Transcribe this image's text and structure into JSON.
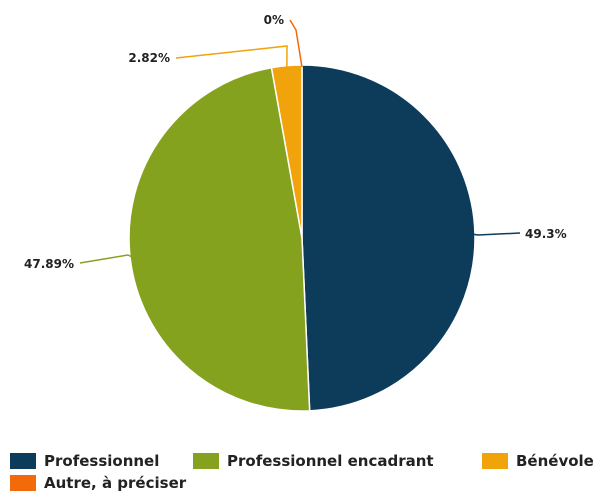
{
  "chart_data": {
    "type": "pie",
    "categories": [
      "Professionnel",
      "Professionnel encadrant",
      "Bénévole",
      "Autre, à préciser"
    ],
    "values": [
      49.3,
      47.89,
      2.82,
      0
    ],
    "labels": [
      "49.3%",
      "47.89%",
      "2.82%",
      "0%"
    ],
    "colors": [
      "#0d3b5a",
      "#85a21e",
      "#f0a30a",
      "#f26a0a"
    ],
    "start_angle_deg": 0,
    "direction": "clockwise",
    "legend_position": "bottom"
  }
}
